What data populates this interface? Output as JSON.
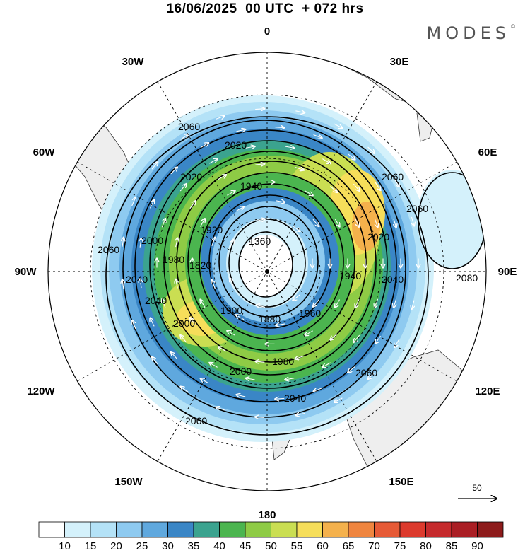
{
  "header": {
    "title": "16/06/2025  00 UTC  + 072 hrs",
    "brand": "MODES",
    "brand_mark": "©"
  },
  "map": {
    "projection": "polar-stereographic",
    "hemisphere": "south",
    "field_shaded": "wind speed",
    "field_contoured": "geopotential height",
    "longitude_labels": [
      "0",
      "30E",
      "60E",
      "90E",
      "120E",
      "150E",
      "180",
      "150W",
      "120W",
      "90W",
      "60W",
      "30W"
    ],
    "contour_labels": [
      "2060",
      "2020",
      "1940",
      "2020",
      "2060",
      "1920",
      "1360",
      "2040",
      "1980",
      "1820",
      "2000",
      "1900",
      "1880",
      "1960",
      "1980",
      "1940",
      "2040",
      "2000",
      "2080",
      "2040",
      "2060",
      "2060",
      "2060",
      "2000",
      "2040",
      "2020",
      "2060"
    ],
    "contour_values": [
      1360,
      1820,
      1880,
      1900,
      1920,
      1940,
      1960,
      1980,
      2000,
      2020,
      2040,
      2060,
      2080
    ],
    "land_color": "#eeeeee",
    "vector_color": "#ffffff",
    "reference_vector": "50"
  },
  "colorbar": {
    "labels": [
      "10",
      "15",
      "20",
      "25",
      "30",
      "35",
      "40",
      "45",
      "50",
      "55",
      "60",
      "65",
      "70",
      "75",
      "80",
      "85",
      "90"
    ],
    "colors": [
      "#ffffff",
      "#d4f1fb",
      "#b4e2f7",
      "#8ecaf0",
      "#5fa8de",
      "#3a86c6",
      "#3ba38f",
      "#4bb54f",
      "#8ecb45",
      "#cade52",
      "#f6de5a",
      "#f4b14c",
      "#ef853f",
      "#e65a36",
      "#dc3a2d",
      "#c52a2c",
      "#aa1e24",
      "#8d1b1b"
    ]
  }
}
